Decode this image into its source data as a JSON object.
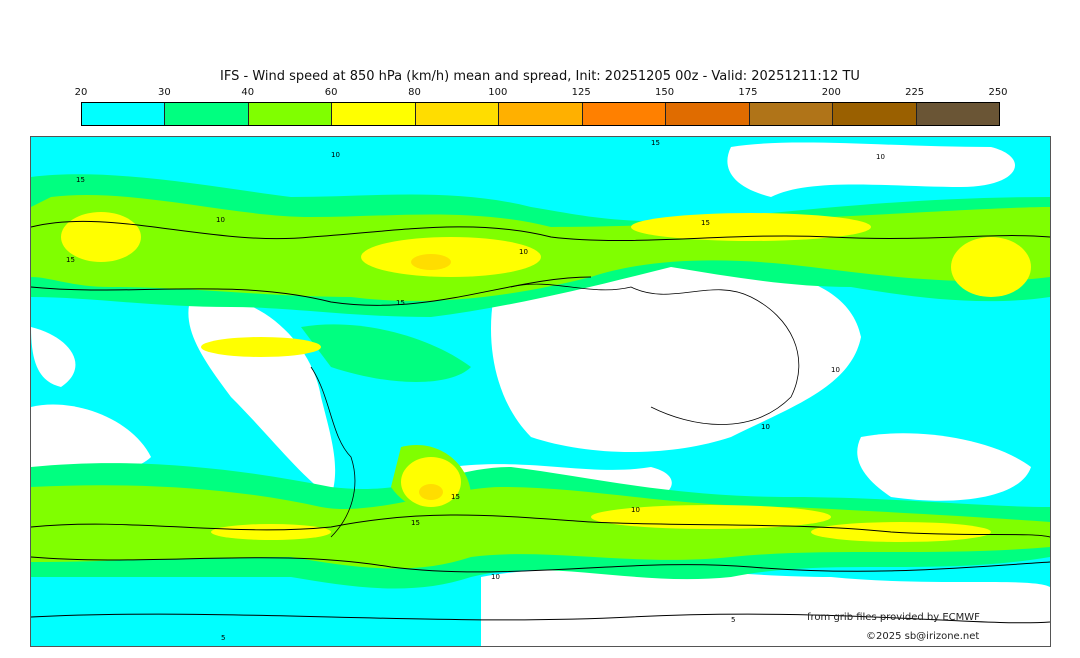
{
  "title": "IFS - Wind speed at 850 hPa (km/h) mean and spread, Init: 20251205 00z - Valid: 20251211:12 TU",
  "colorbar": {
    "ticks": [
      "20",
      "30",
      "40",
      "60",
      "80",
      "100",
      "125",
      "150",
      "175",
      "200",
      "225",
      "250"
    ],
    "colors": [
      "#00ffff",
      "#00ff80",
      "#80ff00",
      "#ffff00",
      "#ffdd00",
      "#ffb000",
      "#ff8000",
      "#e06c00",
      "#b07418",
      "#9a6000",
      "#6a5535"
    ]
  },
  "contour_labels": [
    "10",
    "15",
    "10",
    "15",
    "10",
    "15",
    "10",
    "15",
    "15",
    "10",
    "10",
    "15",
    "15",
    "10",
    "5",
    "5",
    "10"
  ],
  "credits": {
    "source": "from grib files provided by ECMWF",
    "copyright": "©2025 sb@irizone.net"
  }
}
